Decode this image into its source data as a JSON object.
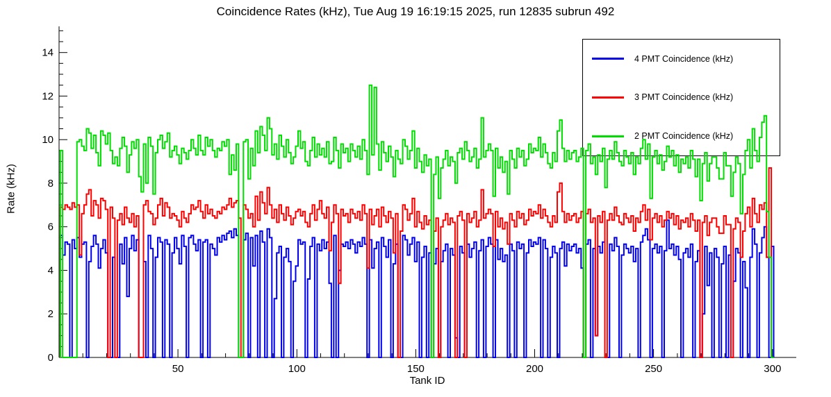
{
  "chart_data": {
    "type": "line",
    "style": "step-histogram",
    "title": "Coincidence Rates (kHz), Tue Aug 19 16:19:15 2025, run 12835 subrun 492",
    "xlabel": "Tank ID",
    "ylabel": "Rate (kHz)",
    "xlim": [
      0,
      310
    ],
    "ylim": [
      0,
      15.2
    ],
    "x_major_ticks": [
      50,
      100,
      150,
      200,
      250,
      300
    ],
    "x_minor_step": 10,
    "y_major_ticks": [
      0,
      2,
      4,
      6,
      8,
      10,
      12,
      14
    ],
    "y_minor_step": 0.5,
    "grid": false,
    "legend_position": "top-right",
    "x_start": 1,
    "bin_width": 1,
    "series": [
      {
        "name": "4 PMT Coincidence (kHz)",
        "color": "#0000ee",
        "values": [
          5.6,
          4.7,
          5.3,
          5.2,
          0,
          5.4,
          5.0,
          5.5,
          4.6,
          5.2,
          5.3,
          0,
          4.4,
          5.1,
          5.6,
          5.2,
          4.1,
          5.0,
          5.4,
          4.8,
          0,
          0,
          4.6,
          0,
          0,
          5.2,
          4.3,
          5.5,
          2.8,
          5.0,
          5.6,
          4.9,
          5.4,
          0,
          0,
          4.4,
          0,
          5.6,
          5.0,
          0,
          4.6,
          5.5,
          5.3,
          0,
          5.4,
          5.2,
          0,
          4.8,
          5.5,
          5.0,
          4.3,
          5.6,
          5.1,
          0,
          5.5,
          5.6,
          5.2,
          4.9,
          5.4,
          0,
          5.3,
          5.4,
          0,
          5.2,
          5.0,
          4.7,
          5.5,
          5.3,
          5.6,
          5.4,
          5.7,
          5.8,
          5.5,
          5.9,
          5.6,
          0,
          0,
          5.4,
          5.7,
          0,
          5.5,
          4.2,
          5.6,
          0,
          5.8,
          5.3,
          0,
          5.9,
          5.5,
          0,
          2.7,
          4.8,
          5.1,
          0,
          4.6,
          5.0,
          4.4,
          0,
          3.5,
          4.2,
          5.4,
          5.2,
          5.3,
          0,
          3.6,
          5.1,
          5.5,
          0,
          5.2,
          4.9,
          5.4,
          5.0,
          5.3,
          3.4,
          0,
          5.6,
          0,
          4.0,
          5.2,
          5.1,
          5.3,
          5.0,
          5.4,
          5.2,
          4.8,
          5.3,
          5.1,
          5.5,
          5.2,
          0,
          5.4,
          4.1,
          5.0,
          5.3,
          0,
          5.5,
          5.1,
          4.6,
          5.4,
          0,
          4.3,
          5.2,
          0,
          0,
          5.6,
          5.4,
          4.7,
          5.2,
          5.5,
          4.4,
          5.3,
          0,
          4.6,
          5.1,
          0,
          4.8,
          0,
          4.3,
          5.0,
          0,
          4.4,
          4.9,
          5.2,
          0,
          5.0,
          4.7,
          0.9,
          0,
          5.1,
          4.8,
          0,
          5.2,
          4.6,
          5.0,
          5.3,
          0,
          4.9,
          5.4,
          0,
          5.1,
          5.5,
          5.2,
          0,
          5.4,
          4.5,
          5.0,
          4.4,
          4.7,
          0,
          5.2,
          4.9,
          0,
          5.3,
          5.0,
          5.2,
          0,
          4.8,
          5.4,
          5.1,
          5.3,
          5.2,
          5.5,
          0,
          5.4,
          5.0,
          0,
          4.6,
          5.1,
          4.8,
          0,
          5.0,
          5.3,
          4.2,
          5.2,
          4.9,
          5.1,
          5.2,
          4.8,
          5.0,
          4.1,
          0,
          5.2,
          5.4,
          0,
          5.0,
          1.0,
          5.1,
          4.8,
          5.3,
          0,
          0,
          5.2,
          4.9,
          5.5,
          5.1,
          0,
          4.7,
          5.2,
          5.0,
          4.8,
          5.1,
          4.4,
          5.0,
          0,
          5.3,
          5.6,
          5.9,
          5.4,
          0,
          5.0,
          5.2,
          4.8,
          5.1,
          0,
          4.9,
          6.3,
          5.0,
          5.2,
          4.7,
          5.1,
          4.5,
          0,
          4.8,
          5.0,
          4.6,
          5.2,
          0,
          4.4,
          4.9,
          0,
          2.0,
          5.1,
          3.3,
          4.8,
          0,
          5.0,
          4.6,
          0,
          4.3,
          5.1,
          0,
          4.7,
          0,
          3.5,
          5.0,
          4.8,
          0,
          4.4,
          3.2,
          0,
          4.6,
          5.9,
          5.2,
          0,
          4.8,
          5.5,
          6.0,
          4.6,
          0,
          5.1
        ]
      },
      {
        "name": "3 PMT Coincidence (kHz)",
        "color": "#ff0000",
        "values": [
          6.9,
          6.8,
          7.0,
          6.9,
          6.8,
          7.1,
          6.9,
          7.0,
          4.7,
          6.6,
          7.0,
          7.5,
          7.7,
          6.5,
          7.2,
          7.0,
          6.4,
          7.3,
          7.2,
          6.8,
          0,
          6.9,
          6.4,
          0,
          6.3,
          6.6,
          6.1,
          6.9,
          6.4,
          6.2,
          6.6,
          6.0,
          6.5,
          0,
          0,
          7.0,
          7.2,
          6.7,
          6.6,
          6.1,
          6.4,
          7.0,
          7.3,
          6.5,
          7.1,
          6.9,
          6.4,
          6.6,
          6.5,
          6.3,
          6.0,
          6.7,
          6.4,
          6.2,
          6.6,
          7.0,
          6.8,
          6.9,
          7.2,
          6.7,
          6.4,
          7.0,
          6.6,
          6.8,
          6.5,
          6.4,
          6.7,
          6.6,
          6.9,
          6.8,
          7.0,
          7.3,
          6.9,
          7.1,
          7.2,
          6.4,
          0,
          7.0,
          6.8,
          6.4,
          6.6,
          6.0,
          7.4,
          6.3,
          7.6,
          7.1,
          6.6,
          7.8,
          7.0,
          6.4,
          6.8,
          6.2,
          7.0,
          6.6,
          6.3,
          6.9,
          6.5,
          6.1,
          6.4,
          6.7,
          6.8,
          6.5,
          6.7,
          6.2,
          6.0,
          6.6,
          7.0,
          6.3,
          6.8,
          7.2,
          6.6,
          6.4,
          6.9,
          4.9,
          6.2,
          7.0,
          6.6,
          3.4,
          6.8,
          6.5,
          6.6,
          6.2,
          6.8,
          6.6,
          6.4,
          6.7,
          6.3,
          7.0,
          6.6,
          4.1,
          6.8,
          6.1,
          6.5,
          6.8,
          6.0,
          6.9,
          6.5,
          6.2,
          6.7,
          6.4,
          4.8,
          6.6,
          0,
          5.8,
          7.0,
          6.8,
          6.3,
          6.6,
          7.3,
          6.0,
          6.7,
          6.2,
          5.9,
          6.5,
          6.1,
          6.3,
          0,
          5.8,
          6.4,
          0,
          6.0,
          6.3,
          6.6,
          6.1,
          6.4,
          6.2,
          0,
          6.5,
          6.7,
          6.3,
          0,
          6.6,
          6.2,
          6.4,
          6.7,
          6.0,
          6.3,
          7.7,
          6.4,
          6.6,
          6.8,
          6.6,
          5.1,
          6.7,
          6.0,
          6.4,
          5.9,
          6.2,
          5.2,
          6.6,
          6.3,
          6.0,
          6.7,
          6.4,
          6.6,
          6.1,
          6.3,
          6.8,
          6.5,
          6.7,
          6.6,
          7.0,
          6.4,
          6.8,
          6.5,
          6.2,
          6.0,
          6.5,
          6.2,
          7.6,
          8.0,
          6.7,
          6.2,
          6.6,
          6.3,
          6.5,
          6.6,
          6.2,
          6.4,
          6.7,
          0,
          6.6,
          6.8,
          6.2,
          6.4,
          1.0,
          6.5,
          6.2,
          6.7,
          0,
          6.3,
          6.6,
          6.3,
          6.9,
          6.5,
          6.2,
          6.1,
          6.6,
          6.4,
          6.2,
          6.5,
          5.8,
          6.4,
          6.2,
          6.7,
          7.0,
          6.3,
          6.8,
          5.4,
          6.4,
          6.6,
          6.2,
          6.5,
          6.0,
          6.3,
          6.7,
          6.4,
          6.6,
          6.1,
          6.5,
          5.9,
          6.3,
          6.2,
          6.4,
          6.0,
          6.6,
          6.3,
          5.8,
          6.3,
          0,
          6.2,
          6.5,
          5.6,
          6.2,
          6.4,
          6.4,
          6.0,
          5.7,
          5.7,
          6.5,
          6.1,
          6.1,
          0,
          5.9,
          6.4,
          6.2,
          4.6,
          5.8,
          6.6,
          6.9,
          6.0,
          7.3,
          6.6,
          6.2,
          7.0,
          6.8,
          7.1,
          4.6,
          8.7,
          0
        ]
      },
      {
        "name": "2 PMT Coincidence (kHz)",
        "color": "#00dd00",
        "values": [
          9.5,
          0,
          0,
          0,
          0,
          0,
          0,
          9.9,
          10.0,
          9.7,
          9.5,
          10.5,
          10.3,
          9.6,
          10.2,
          9.4,
          8.8,
          10.4,
          10.2,
          9.8,
          10.3,
          9.5,
          8.9,
          9.2,
          8.8,
          9.6,
          10.1,
          9.7,
          8.5,
          9.3,
          9.9,
          9.6,
          10.0,
          8.3,
          7.6,
          9.8,
          8.0,
          10.1,
          9.7,
          7.5,
          9.4,
          10.0,
          10.2,
          9.6,
          9.9,
          10.3,
          9.2,
          9.5,
          9.7,
          9.3,
          8.9,
          9.6,
          9.4,
          9.1,
          9.5,
          10.0,
          9.6,
          9.3,
          10.2,
          9.5,
          9.3,
          10.1,
          9.7,
          10.0,
          9.5,
          9.2,
          9.6,
          9.5,
          9.9,
          9.7,
          10.0,
          8.4,
          9.3,
          8.6,
          9.8,
          0,
          0,
          9.9,
          10.0,
          8.2,
          9.6,
          8.8,
          10.4,
          9.4,
          10.6,
          10.2,
          9.5,
          11.0,
          10.5,
          9.3,
          9.8,
          9.1,
          10.2,
          9.7,
          9.2,
          10.0,
          9.4,
          8.9,
          9.2,
          9.7,
          10.4,
          9.6,
          9.9,
          9.0,
          8.8,
          9.5,
          10.1,
          9.2,
          9.8,
          9.3,
          9.6,
          9.2,
          9.9,
          8.9,
          9.0,
          10.1,
          9.5,
          8.7,
          9.8,
          9.4,
          9.6,
          9.0,
          9.8,
          9.5,
          9.2,
          9.7,
          9.1,
          10.0,
          9.5,
          8.4,
          12.5,
          9.3,
          12.4,
          9.8,
          8.6,
          9.9,
          9.4,
          9.0,
          9.7,
          9.2,
          8.3,
          9.5,
          9.1,
          8.9,
          10.0,
          9.7,
          9.1,
          9.5,
          10.4,
          8.7,
          9.6,
          9.0,
          8.5,
          9.3,
          8.8,
          9.1,
          0,
          8.4,
          9.2,
          7.3,
          8.7,
          9.1,
          9.5,
          8.8,
          9.2,
          9.0,
          8.0,
          9.4,
          9.6,
          9.1,
          9.9,
          9.5,
          9.0,
          9.2,
          9.6,
          8.7,
          9.1,
          11.0,
          9.2,
          9.5,
          9.8,
          9.5,
          7.4,
          9.6,
          8.7,
          9.2,
          8.5,
          9.0,
          7.5,
          9.5,
          9.1,
          8.7,
          9.6,
          9.2,
          9.5,
          8.8,
          9.1,
          9.8,
          9.4,
          9.6,
          9.5,
          10.1,
          9.2,
          9.8,
          9.4,
          8.9,
          8.7,
          9.4,
          9.0,
          10.4,
          10.9,
          9.6,
          9.0,
          9.5,
          9.1,
          9.4,
          9.5,
          9.0,
          9.2,
          9.6,
          0,
          9.5,
          9.8,
          8.9,
          9.2,
          8.4,
          9.3,
          9.0,
          9.6,
          7.8,
          9.1,
          9.5,
          9.1,
          9.9,
          9.4,
          9.0,
          8.8,
          9.5,
          9.2,
          8.9,
          9.4,
          8.4,
          9.2,
          8.9,
          9.6,
          10.0,
          9.1,
          9.8,
          7.3,
          9.2,
          9.5,
          8.9,
          9.3,
          8.6,
          9.0,
          9.7,
          9.2,
          9.5,
          8.8,
          9.3,
          8.5,
          9.1,
          8.9,
          9.2,
          8.7,
          9.5,
          9.1,
          8.3,
          9.1,
          7.2,
          8.9,
          9.4,
          8.1,
          8.9,
          9.2,
          9.2,
          8.7,
          8.2,
          8.2,
          9.4,
          8.8,
          8.8,
          7.4,
          8.5,
          9.2,
          8.9,
          6.6,
          8.4,
          9.5,
          10.0,
          8.7,
          10.5,
          9.5,
          9.0,
          10.1,
          10.8,
          11.1,
          6.7,
          4.6,
          0
        ]
      }
    ]
  }
}
